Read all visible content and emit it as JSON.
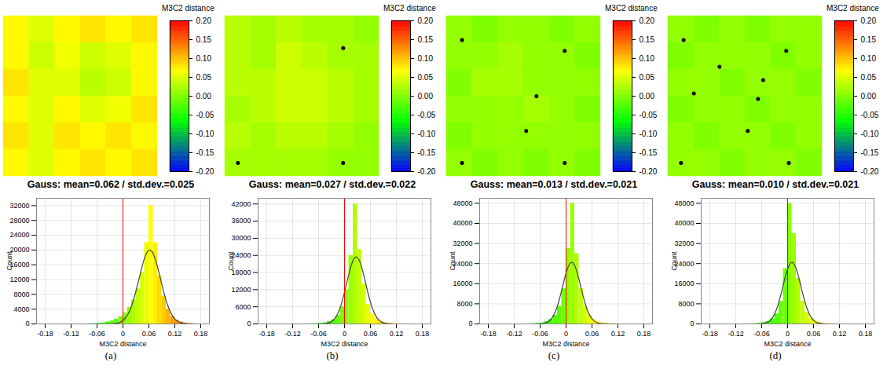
{
  "chart_data": [
    {
      "type": "histogram",
      "panel": "(a)",
      "subtitle": "Gauss: mean=0.062 / std.dev.=0.025",
      "xlabel": "M3C2 distance",
      "ylabel": "Count",
      "grid": true,
      "color_bar": {
        "title": "M3C2 distance",
        "range": [
          -0.2,
          0.2
        ],
        "colors": [
          "#0000ff",
          "#00ff00",
          "#ffff00",
          "#ff0000"
        ],
        "ticks": [
          {
            "value": -0.2,
            "label": "-0.20"
          },
          {
            "value": -0.15,
            "label": "-0.15"
          },
          {
            "value": -0.1,
            "label": "-0.10"
          },
          {
            "value": -0.05,
            "label": "-0.05"
          },
          {
            "value": 0,
            "label": "0.00"
          },
          {
            "value": 0.05,
            "label": "0.05"
          },
          {
            "value": 0.1,
            "label": "0.10"
          },
          {
            "value": 0.15,
            "label": "0.15"
          },
          {
            "value": 0.2,
            "label": "0.20"
          }
        ]
      },
      "map": {
        "cells": [
          [
            0.07,
            0.05,
            0.07,
            0.08,
            0.07,
            0.08
          ],
          [
            0.07,
            0.04,
            0.06,
            0.04,
            0.05,
            0.07
          ],
          [
            0.08,
            0.05,
            0.05,
            0.03,
            0.04,
            0.07
          ],
          [
            0.07,
            0.05,
            0.07,
            0.05,
            0.06,
            0.08
          ],
          [
            0.08,
            0.05,
            0.08,
            0.07,
            0.08,
            0.07
          ],
          [
            0.07,
            0.05,
            0.07,
            0.08,
            0.07,
            0.08
          ]
        ],
        "control_points": []
      },
      "bins": [
        -0.2,
        -0.19,
        -0.18,
        -0.17,
        -0.16,
        -0.15,
        -0.14,
        -0.13,
        -0.12,
        -0.11,
        -0.1,
        -0.09,
        -0.08,
        -0.07,
        -0.06,
        -0.05,
        -0.04,
        -0.03,
        -0.02,
        -0.01,
        0,
        0.01,
        0.02,
        0.03,
        0.04,
        0.05,
        0.06,
        0.07,
        0.08,
        0.09,
        0.1,
        0.11,
        0.12,
        0.13,
        0.14,
        0.15,
        0.16,
        0.17,
        0.18,
        0.19,
        0.2
      ],
      "counts": [
        0,
        0,
        0,
        0,
        0,
        0,
        0,
        0,
        0,
        0,
        0,
        0,
        50,
        100,
        200,
        300,
        500,
        800,
        1300,
        2000,
        3000,
        4500,
        6500,
        9500,
        14000,
        22000,
        32000,
        22000,
        13000,
        7500,
        4000,
        2000,
        1000,
        500,
        250,
        100,
        50,
        0,
        0,
        0
      ],
      "gauss": [
        0,
        0,
        0,
        0,
        0,
        0,
        0,
        0,
        0,
        0,
        0,
        0,
        0,
        0,
        0,
        0,
        10,
        50,
        170,
        550,
        1490,
        3420,
        6690,
        11160,
        15870,
        19230,
        19860,
        17470,
        13100,
        8370,
        4560,
        2110,
        840,
        280,
        80,
        20,
        0,
        0,
        0,
        0
      ],
      "reference_line": 0,
      "xlim": [
        -0.2,
        0.2
      ],
      "xticks": [
        -0.18,
        -0.12,
        -0.06,
        0,
        0.06,
        0.12,
        0.18
      ],
      "ylim": [
        0,
        34000
      ],
      "yticks": [
        0,
        4000,
        8000,
        12000,
        16000,
        20000,
        24000,
        28000,
        32000
      ]
    },
    {
      "type": "histogram",
      "panel": "(b)",
      "subtitle": "Gauss: mean=0.027 / std.dev.=0.022",
      "xlabel": "M3C2 distance",
      "ylabel": "Count",
      "grid": true,
      "color_bar": {
        "title": "M3C2 distance",
        "range": [
          -0.2,
          0.2
        ],
        "colors": [
          "#0000ff",
          "#00ff00",
          "#ffff00",
          "#ff0000"
        ],
        "ticks": [
          {
            "value": -0.2,
            "label": "-0.20"
          },
          {
            "value": -0.15,
            "label": "-0.15"
          },
          {
            "value": -0.1,
            "label": "-0.10"
          },
          {
            "value": -0.05,
            "label": "-0.05"
          },
          {
            "value": 0,
            "label": "0.00"
          },
          {
            "value": 0.05,
            "label": "0.05"
          },
          {
            "value": 0.1,
            "label": "0.10"
          },
          {
            "value": 0.15,
            "label": "0.15"
          },
          {
            "value": 0.2,
            "label": "0.20"
          }
        ]
      },
      "map": {
        "cells": [
          [
            0.03,
            0.02,
            0.03,
            0.02,
            0.02,
            0.01
          ],
          [
            0.03,
            0.02,
            0.04,
            0.03,
            0.02,
            0.02
          ],
          [
            0.03,
            0.03,
            0.04,
            0.04,
            0.03,
            0.02
          ],
          [
            0.02,
            0.03,
            0.04,
            0.04,
            0.03,
            0.02
          ],
          [
            0.03,
            0.02,
            0.03,
            0.03,
            0.02,
            0.01
          ],
          [
            0.02,
            0.02,
            0.02,
            0.02,
            0.01,
            0.01
          ]
        ],
        "control_points": [
          [
            4.6,
            1.2
          ],
          [
            0.5,
            5.5
          ],
          [
            4.6,
            5.5
          ]
        ]
      },
      "bins": [
        -0.2,
        -0.19,
        -0.18,
        -0.17,
        -0.16,
        -0.15,
        -0.14,
        -0.13,
        -0.12,
        -0.11,
        -0.1,
        -0.09,
        -0.08,
        -0.07,
        -0.06,
        -0.05,
        -0.04,
        -0.03,
        -0.02,
        -0.01,
        0,
        0.01,
        0.02,
        0.03,
        0.04,
        0.05,
        0.06,
        0.07,
        0.08,
        0.09,
        0.1,
        0.11,
        0.12,
        0.13,
        0.14,
        0.15,
        0.16,
        0.17,
        0.18,
        0.19,
        0.2
      ],
      "counts": [
        0,
        0,
        0,
        0,
        0,
        0,
        0,
        0,
        0,
        0,
        0,
        0,
        50,
        100,
        200,
        400,
        800,
        1500,
        3000,
        6000,
        12000,
        24000,
        42000,
        26000,
        14000,
        7000,
        3500,
        1700,
        800,
        400,
        200,
        100,
        50,
        0,
        0,
        0,
        0,
        0,
        0,
        0
      ],
      "gauss": [
        0,
        0,
        0,
        0,
        0,
        0,
        0,
        0,
        0,
        0,
        0,
        0,
        0,
        0,
        20,
        110,
        440,
        1440,
        3800,
        8160,
        14250,
        20250,
        23400,
        22000,
        16820,
        10450,
        5290,
        2180,
        730,
        200,
        40,
        0,
        0,
        0,
        0,
        0,
        0,
        0,
        0,
        0
      ],
      "reference_line": 0,
      "xlim": [
        -0.2,
        0.2
      ],
      "xticks": [
        -0.18,
        -0.12,
        -0.06,
        0,
        0.06,
        0.12,
        0.18
      ],
      "ylim": [
        0,
        44000
      ],
      "yticks": [
        0,
        6000,
        12000,
        18000,
        24000,
        30000,
        36000,
        42000
      ]
    },
    {
      "type": "histogram",
      "panel": "(c)",
      "subtitle": "Gauss: mean=0.013 / std.dev.=0.021",
      "xlabel": "M3C2 distance",
      "ylabel": "Count",
      "grid": true,
      "color_bar": {
        "title": "M3C2 distance",
        "range": [
          -0.2,
          0.2
        ],
        "colors": [
          "#0000ff",
          "#00ff00",
          "#ffff00",
          "#ff0000"
        ],
        "ticks": [
          {
            "value": -0.2,
            "label": "-0.20"
          },
          {
            "value": -0.15,
            "label": "-0.15"
          },
          {
            "value": -0.1,
            "label": "-0.10"
          },
          {
            "value": -0.05,
            "label": "-0.05"
          },
          {
            "value": 0,
            "label": "0.00"
          },
          {
            "value": 0.05,
            "label": "0.05"
          },
          {
            "value": 0.1,
            "label": "0.10"
          },
          {
            "value": 0.15,
            "label": "0.15"
          },
          {
            "value": 0.2,
            "label": "0.20"
          }
        ]
      },
      "map": {
        "cells": [
          [
            0.01,
            0.0,
            0.01,
            0.01,
            0.0,
            0.01
          ],
          [
            0.01,
            0.01,
            0.02,
            0.01,
            0.01,
            0.0
          ],
          [
            0.0,
            0.02,
            0.02,
            0.01,
            0.01,
            0.01
          ],
          [
            0.01,
            0.01,
            0.01,
            0.02,
            0.01,
            0.0
          ],
          [
            0.0,
            0.01,
            0.01,
            0.01,
            0.01,
            0.01
          ],
          [
            0.01,
            0.0,
            0.01,
            0.0,
            0.01,
            0.0
          ]
        ],
        "control_points": [
          [
            0.6,
            0.9
          ],
          [
            4.6,
            1.3
          ],
          [
            3.5,
            3.0
          ],
          [
            3.1,
            4.3
          ],
          [
            0.6,
            5.5
          ],
          [
            4.6,
            5.5
          ]
        ]
      },
      "bins": [
        -0.2,
        -0.19,
        -0.18,
        -0.17,
        -0.16,
        -0.15,
        -0.14,
        -0.13,
        -0.12,
        -0.11,
        -0.1,
        -0.09,
        -0.08,
        -0.07,
        -0.06,
        -0.05,
        -0.04,
        -0.03,
        -0.02,
        -0.01,
        0,
        0.01,
        0.02,
        0.03,
        0.04,
        0.05,
        0.06,
        0.07,
        0.08,
        0.09,
        0.1,
        0.11,
        0.12,
        0.13,
        0.14,
        0.15,
        0.16,
        0.17,
        0.18,
        0.19,
        0.2
      ],
      "counts": [
        0,
        0,
        0,
        0,
        0,
        0,
        0,
        0,
        0,
        0,
        0,
        50,
        100,
        200,
        400,
        900,
        1800,
        3500,
        7000,
        14000,
        30000,
        48000,
        28000,
        14000,
        7000,
        3500,
        1700,
        800,
        400,
        200,
        100,
        50,
        0,
        0,
        0,
        0,
        0,
        0,
        0,
        0
      ],
      "gauss": [
        0,
        0,
        0,
        0,
        0,
        0,
        0,
        0,
        0,
        0,
        0,
        0,
        0,
        25,
        130,
        540,
        1800,
        4770,
        10070,
        16970,
        22790,
        24390,
        20810,
        14150,
        7670,
        3310,
        1140,
        310,
        70,
        10,
        0,
        0,
        0,
        0,
        0,
        0,
        0,
        0,
        0,
        0
      ],
      "reference_line": 0,
      "xlim": [
        -0.2,
        0.2
      ],
      "xticks": [
        -0.18,
        -0.12,
        -0.06,
        0,
        0.06,
        0.12,
        0.18
      ],
      "ylim": [
        0,
        50000
      ],
      "yticks": [
        0,
        8000,
        16000,
        24000,
        32000,
        40000,
        48000
      ]
    },
    {
      "type": "histogram",
      "panel": "(d)",
      "subtitle": "Gauss: mean=0.010 / std.dev.=0.021",
      "xlabel": "M3C2 distance",
      "ylabel": "Count",
      "grid": true,
      "color_bar": {
        "title": "M3C2 distance",
        "range": [
          -0.2,
          0.2
        ],
        "colors": [
          "#0000ff",
          "#00ff00",
          "#ffff00",
          "#ff0000"
        ],
        "ticks": [
          {
            "value": -0.2,
            "label": "-0.20"
          },
          {
            "value": -0.15,
            "label": "-0.15"
          },
          {
            "value": -0.1,
            "label": "-0.10"
          },
          {
            "value": -0.05,
            "label": "-0.05"
          },
          {
            "value": 0,
            "label": "0.00"
          },
          {
            "value": 0.05,
            "label": "0.05"
          },
          {
            "value": 0.1,
            "label": "0.10"
          },
          {
            "value": 0.15,
            "label": "0.15"
          },
          {
            "value": 0.2,
            "label": "0.20"
          }
        ]
      },
      "map": {
        "cells": [
          [
            0.01,
            0.0,
            0.01,
            0.0,
            0.01,
            0.01
          ],
          [
            0.0,
            0.01,
            0.01,
            0.01,
            0.0,
            0.01
          ],
          [
            0.01,
            0.01,
            0.0,
            0.01,
            0.01,
            0.0
          ],
          [
            0.0,
            0.01,
            0.01,
            0.0,
            0.01,
            0.01
          ],
          [
            0.01,
            0.0,
            0.01,
            0.01,
            0.0,
            0.01
          ],
          [
            0.01,
            0.01,
            0.0,
            0.01,
            0.01,
            0.0
          ]
        ],
        "control_points": [
          [
            0.6,
            0.9
          ],
          [
            4.6,
            1.3
          ],
          [
            2.0,
            1.9
          ],
          [
            3.7,
            2.4
          ],
          [
            1.0,
            2.9
          ],
          [
            3.5,
            3.1
          ],
          [
            3.1,
            4.3
          ],
          [
            0.5,
            5.5
          ],
          [
            4.7,
            5.5
          ]
        ]
      },
      "bins": [
        -0.2,
        -0.19,
        -0.18,
        -0.17,
        -0.16,
        -0.15,
        -0.14,
        -0.13,
        -0.12,
        -0.11,
        -0.1,
        -0.09,
        -0.08,
        -0.07,
        -0.06,
        -0.05,
        -0.04,
        -0.03,
        -0.02,
        -0.01,
        0,
        0.01,
        0.02,
        0.03,
        0.04,
        0.05,
        0.06,
        0.07,
        0.08,
        0.09,
        0.1,
        0.11,
        0.12,
        0.13,
        0.14,
        0.15,
        0.16,
        0.17,
        0.18,
        0.19,
        0.2
      ],
      "counts": [
        0,
        0,
        0,
        0,
        0,
        0,
        0,
        0,
        0,
        0,
        0,
        50,
        100,
        250,
        500,
        1000,
        2000,
        4000,
        9000,
        22000,
        48000,
        36000,
        18000,
        9000,
        4500,
        2200,
        1100,
        500,
        250,
        100,
        50,
        0,
        0,
        0,
        0,
        0,
        0,
        0,
        0,
        0
      ],
      "gauss": [
        0,
        0,
        0,
        0,
        0,
        0,
        0,
        0,
        0,
        0,
        0,
        0,
        0,
        40,
        200,
        790,
        2470,
        6110,
        12060,
        18980,
        23810,
        23810,
        18980,
        12060,
        6110,
        2470,
        790,
        200,
        40,
        0,
        0,
        0,
        0,
        0,
        0,
        0,
        0,
        0,
        0,
        0
      ],
      "reference_line": 0,
      "xlim": [
        -0.2,
        0.2
      ],
      "xticks": [
        -0.18,
        -0.12,
        -0.06,
        0,
        0.06,
        0.12,
        0.18
      ],
      "ylim": [
        0,
        50000
      ],
      "yticks": [
        0,
        8000,
        16000,
        24000,
        32000,
        40000,
        48000
      ]
    }
  ]
}
